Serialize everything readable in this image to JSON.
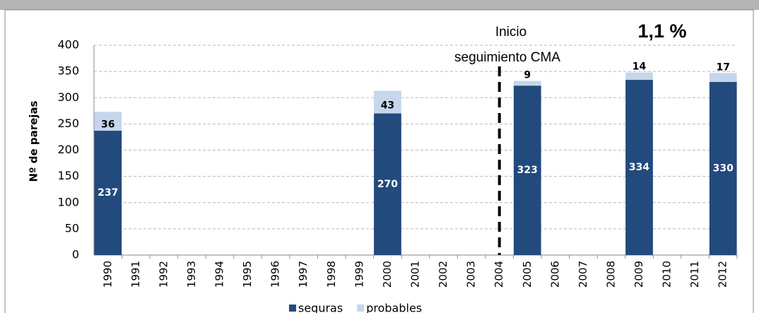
{
  "chart_data": {
    "type": "stacked_bar",
    "y_label": "Nº de parejas",
    "categories": [
      "1990",
      "1991",
      "1992",
      "1993",
      "1994",
      "1995",
      "1996",
      "1997",
      "1998",
      "1999",
      "2000",
      "2001",
      "2002",
      "2003",
      "2004",
      "2005",
      "2006",
      "2007",
      "2008",
      "2009",
      "2010",
      "2011",
      "2012"
    ],
    "series": [
      {
        "name": "seguras",
        "color": "#234a7d",
        "values": [
          237,
          null,
          null,
          null,
          null,
          null,
          null,
          null,
          null,
          null,
          270,
          null,
          null,
          null,
          null,
          323,
          null,
          null,
          null,
          334,
          null,
          null,
          330
        ]
      },
      {
        "name": "probables",
        "color": "#c6d6eb",
        "values": [
          36,
          null,
          null,
          null,
          null,
          null,
          null,
          null,
          null,
          null,
          43,
          null,
          null,
          null,
          null,
          9,
          null,
          null,
          null,
          14,
          null,
          null,
          17
        ]
      }
    ],
    "ylim": [
      0,
      400
    ],
    "yticks": [
      0,
      50,
      100,
      150,
      200,
      250,
      300,
      350,
      400
    ],
    "grid": true,
    "legend": "bottom",
    "annotations": [
      {
        "lines": [
          "Inicio",
          "seguimiento CMA"
        ]
      },
      {
        "text": "1,1 %"
      }
    ],
    "vline": {
      "x": "2004",
      "style": "dashed"
    }
  }
}
